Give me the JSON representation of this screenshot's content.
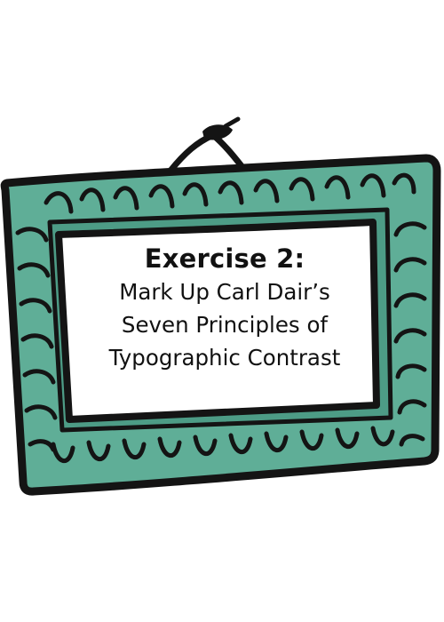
{
  "exercise": {
    "title": "Exercise 2:",
    "lines": [
      "Mark Up Carl Dair’s",
      "Seven Principles of",
      "Typographic Contrast"
    ]
  },
  "frame": {
    "frame_color": "#5fae97",
    "ink_color": "#141414",
    "panel_color": "#ffffff",
    "icon": "hanging-picture-frame-icon"
  }
}
